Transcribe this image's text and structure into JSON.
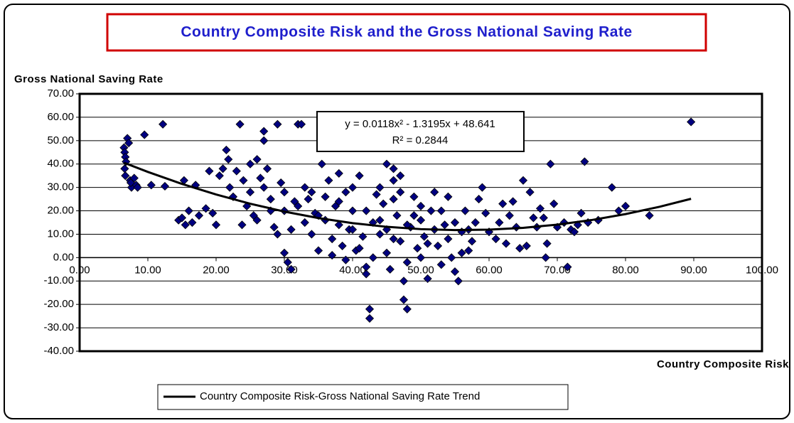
{
  "chart_data": {
    "type": "scatter",
    "title": "Country Composite Risk and the Gross National Saving Rate",
    "ylabel": "Gross National Saving Rate",
    "xlabel": "Country Composite Risk",
    "annotations": [
      "y = 0.0118x² - 1.3195x + 48.641",
      "R² = 0.2844"
    ],
    "xlim": [
      0,
      100
    ],
    "ylim": [
      -40,
      70
    ],
    "xticks": [
      {
        "value": 0,
        "label": "0.00"
      },
      {
        "value": 10,
        "label": "10.00"
      },
      {
        "value": 20,
        "label": "20.00"
      },
      {
        "value": 30,
        "label": "30.00"
      },
      {
        "value": 40,
        "label": "40.00"
      },
      {
        "value": 50,
        "label": "50.00"
      },
      {
        "value": 60,
        "label": "60.00"
      },
      {
        "value": 70,
        "label": "70.00"
      },
      {
        "value": 80,
        "label": "80.00"
      },
      {
        "value": 90,
        "label": "90.00"
      },
      {
        "value": 100,
        "label": "100.00"
      }
    ],
    "yticks": [
      {
        "value": -40,
        "label": "-40.00"
      },
      {
        "value": -30,
        "label": "-30.00"
      },
      {
        "value": -20,
        "label": "-20.00"
      },
      {
        "value": -10,
        "label": "-10.00"
      },
      {
        "value": 0,
        "label": "0.00"
      },
      {
        "value": 10,
        "label": "10.00"
      },
      {
        "value": 20,
        "label": "20.00"
      },
      {
        "value": 30,
        "label": "30.00"
      },
      {
        "value": 40,
        "label": "40.00"
      },
      {
        "value": 50,
        "label": "50.00"
      },
      {
        "value": 60,
        "label": "60.00"
      },
      {
        "value": 70,
        "label": "70.00"
      }
    ],
    "grid": true,
    "legend": "bottom",
    "series": [
      {
        "color": "#000080",
        "x": [
          6.5,
          6.6,
          6.7,
          6.8,
          6.6,
          6.7,
          7,
          7.2,
          7.4,
          7.6,
          7.5,
          8,
          8.3,
          8.5,
          9.5,
          10.5,
          12.2,
          12.5,
          14.5,
          15,
          15.5,
          15.3,
          16,
          16.5,
          17,
          17.5,
          18.5,
          19,
          19.5,
          20,
          20.5,
          21,
          21.5,
          21.8,
          22,
          22.5,
          23,
          23.5,
          23.8,
          24,
          24.5,
          25,
          25.5,
          26,
          26.5,
          27,
          27,
          27.5,
          28,
          28.5,
          29,
          29.5,
          30,
          30,
          30.5,
          31,
          31.5,
          32,
          32.5,
          33,
          33.5,
          34,
          34.5,
          35,
          35.5,
          36,
          36.5,
          37,
          37.5,
          38,
          38.5,
          39,
          39.5,
          40,
          40.5,
          41,
          41.5,
          42,
          42.5,
          42.5,
          43,
          43.5,
          44,
          44.5,
          45,
          45.5,
          46,
          46.5,
          47,
          47.5,
          47.5,
          48,
          48.5,
          49,
          49.5,
          50,
          50.5,
          51,
          51.5,
          52,
          52.5,
          53,
          53.5,
          54,
          54.5,
          55,
          55.5,
          56,
          56.5,
          57,
          57.5,
          58,
          58.5,
          59,
          59.5,
          60,
          61,
          61.5,
          62,
          62.5,
          63,
          63.5,
          64,
          64.5,
          65,
          65.5,
          66,
          66.5,
          67,
          67.5,
          68,
          68.5,
          68.3,
          69,
          69.5,
          70,
          71,
          71.5,
          72,
          72.5,
          73,
          73.5,
          74,
          74.5,
          76,
          78,
          79,
          80,
          83.5,
          89.6,
          35,
          38,
          40,
          42,
          44,
          46,
          48,
          50,
          52,
          44,
          46,
          40,
          36,
          33,
          31,
          28,
          26,
          25,
          27,
          38,
          41,
          43,
          45,
          47,
          49,
          51,
          53,
          55,
          57,
          54,
          56,
          50,
          48,
          42,
          39,
          37,
          34,
          32,
          30,
          29,
          45,
          46,
          47
        ],
        "values": [
          47,
          45,
          43,
          41,
          38,
          35,
          51,
          49,
          33,
          30,
          32,
          34,
          31,
          30,
          52.5,
          31,
          57,
          30.5,
          16,
          17,
          14,
          33,
          20,
          15,
          31,
          18,
          21,
          37,
          19,
          14,
          35,
          38,
          46,
          42,
          30,
          26,
          37,
          57,
          14,
          33,
          22,
          40,
          18,
          42,
          34,
          54,
          50,
          38,
          25,
          13,
          57,
          32,
          20,
          2,
          -2,
          -5,
          24,
          57,
          57,
          30,
          25,
          10,
          19,
          3,
          40,
          16,
          33,
          8,
          22,
          14,
          5,
          28,
          12,
          20,
          3,
          35,
          9,
          -7,
          -22,
          -26,
          15,
          27,
          10,
          23,
          2,
          -5,
          38,
          18,
          7,
          -10,
          -18,
          -22,
          13,
          26,
          4,
          16,
          9,
          -9,
          20,
          28,
          5,
          -3,
          14,
          26,
          0,
          -6,
          -10,
          11,
          20,
          3,
          7,
          15,
          25,
          30,
          19,
          11,
          8,
          15,
          23,
          6,
          18,
          24,
          13,
          4,
          33,
          5,
          28,
          17,
          13,
          21,
          17,
          6,
          0,
          40,
          23,
          13,
          15,
          -4,
          12,
          11,
          14,
          19,
          41,
          15,
          16,
          30,
          20,
          22,
          18,
          58,
          18,
          24,
          12,
          20,
          16,
          8,
          14,
          22,
          12,
          30,
          25,
          30,
          26,
          15,
          12,
          20,
          16,
          28,
          30,
          36,
          4,
          0,
          12,
          28,
          18,
          6,
          20,
          15,
          12,
          8,
          2,
          0,
          -2,
          -4,
          -1,
          1,
          28,
          22,
          28,
          10,
          40,
          33,
          35
        ]
      },
      {
        "name": "Country Composite Risk-Gross National Saving Rate Trend",
        "type": "line",
        "color": "#000000",
        "x": [
          6.5,
          10,
          15,
          20,
          25,
          30,
          35,
          40,
          45,
          50,
          55,
          60,
          65,
          70,
          75,
          80,
          85,
          89.6
        ],
        "values": [
          40.56,
          36.63,
          31.5,
          26.97,
          23.03,
          19.68,
          16.91,
          14.74,
          13.16,
          12.17,
          11.77,
          11.95,
          12.73,
          14.1,
          16.05,
          18.6,
          21.74,
          25.14
        ]
      }
    ]
  }
}
